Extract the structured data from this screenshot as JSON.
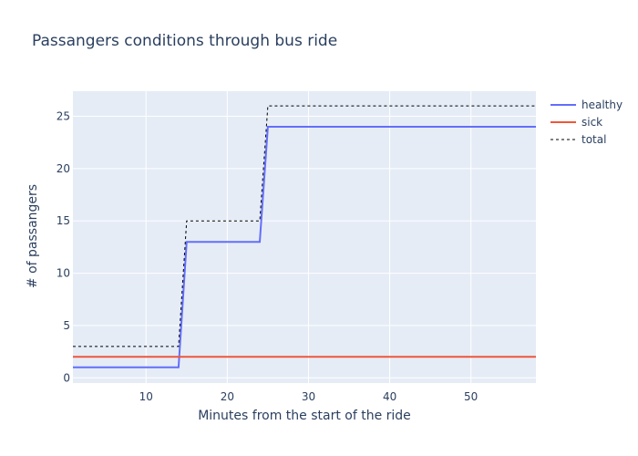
{
  "chart_data": {
    "type": "line",
    "title": "Passangers conditions through bus ride",
    "xlabel": "Minutes from the start of the ride",
    "ylabel": "# of passangers",
    "xlim": [
      1,
      58
    ],
    "ylim": [
      -0.5,
      27.4
    ],
    "x_ticks": [
      10,
      20,
      30,
      40,
      50
    ],
    "y_ticks": [
      0,
      5,
      10,
      15,
      20,
      25
    ],
    "grid": true,
    "legend_position": "top-right",
    "series": [
      {
        "name": "healthy",
        "color": "#636efa",
        "dash": "solid",
        "x": [
          1,
          14,
          15,
          24,
          25,
          58
        ],
        "y": [
          1,
          1,
          13,
          13,
          24,
          24
        ]
      },
      {
        "name": "sick",
        "color": "#ef553b",
        "dash": "solid",
        "x": [
          1,
          58
        ],
        "y": [
          2,
          2
        ]
      },
      {
        "name": "total",
        "color": "#000000",
        "dash": "dashed",
        "x": [
          1,
          14,
          15,
          24,
          25,
          58
        ],
        "y": [
          3,
          3,
          15,
          15,
          26,
          26
        ]
      }
    ]
  },
  "colors": {
    "plot_background": "#e5ecf6",
    "grid": "#ffffff",
    "text": "#2a3f5f"
  }
}
